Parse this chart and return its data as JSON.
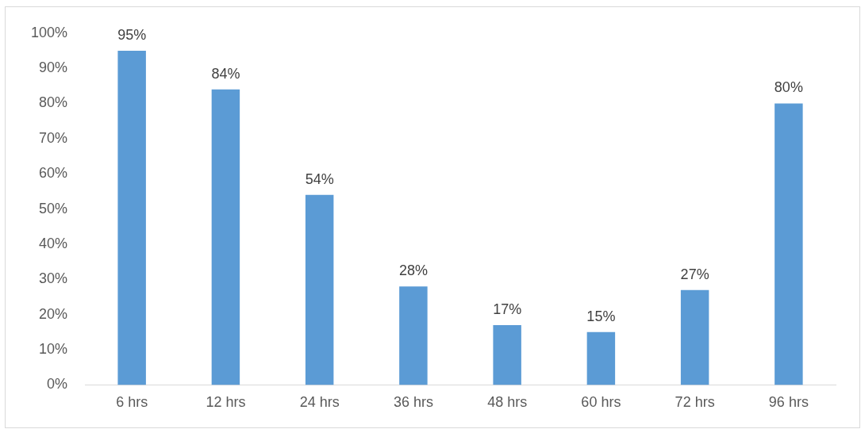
{
  "chart_data": {
    "type": "bar",
    "categories": [
      "6 hrs",
      "12 hrs",
      "24 hrs",
      "36 hrs",
      "48 hrs",
      "60 hrs",
      "72 hrs",
      "96 hrs"
    ],
    "values": [
      95,
      84,
      54,
      28,
      17,
      15,
      27,
      80
    ],
    "value_labels": [
      "95%",
      "84%",
      "54%",
      "28%",
      "17%",
      "15%",
      "27%",
      "80%"
    ],
    "color": "#5b9bd5",
    "ylim": [
      0,
      100
    ],
    "yticks": [
      {
        "value": 0,
        "label": "0%"
      },
      {
        "value": 10,
        "label": "10%"
      },
      {
        "value": 20,
        "label": "20%"
      },
      {
        "value": 30,
        "label": "30%"
      },
      {
        "value": 40,
        "label": "40%"
      },
      {
        "value": 50,
        "label": "50%"
      },
      {
        "value": 60,
        "label": "60%"
      },
      {
        "value": 70,
        "label": "70%"
      },
      {
        "value": 80,
        "label": "80%"
      },
      {
        "value": 90,
        "label": "90%"
      },
      {
        "value": 100,
        "label": "100%"
      }
    ],
    "grid": false,
    "legend": false
  }
}
